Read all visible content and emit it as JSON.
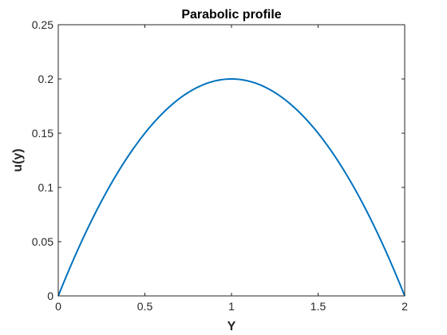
{
  "chart_data": {
    "type": "line",
    "title": "Parabolic profile",
    "xlabel": "Y",
    "ylabel": "u(y)",
    "xlim": [
      0,
      2
    ],
    "ylim": [
      0,
      0.25
    ],
    "xticks": [
      "0",
      "0.5",
      "1",
      "1.5",
      "2"
    ],
    "yticks": [
      "0",
      "0.05",
      "0.1",
      "0.15",
      "0.2",
      "0.25"
    ],
    "grid": false,
    "box": true,
    "series": [
      {
        "color": "#0072BD",
        "x": [
          0,
          0.1,
          0.2,
          0.3,
          0.4,
          0.5,
          0.6,
          0.7,
          0.8,
          0.9,
          1.0,
          1.1,
          1.2,
          1.3,
          1.4,
          1.5,
          1.6,
          1.7,
          1.8,
          1.9,
          2.0
        ],
        "y": [
          0,
          0.038,
          0.072,
          0.102,
          0.128,
          0.15,
          0.168,
          0.182,
          0.192,
          0.198,
          0.2,
          0.198,
          0.192,
          0.182,
          0.168,
          0.15,
          0.128,
          0.102,
          0.072,
          0.038,
          0
        ]
      }
    ]
  }
}
